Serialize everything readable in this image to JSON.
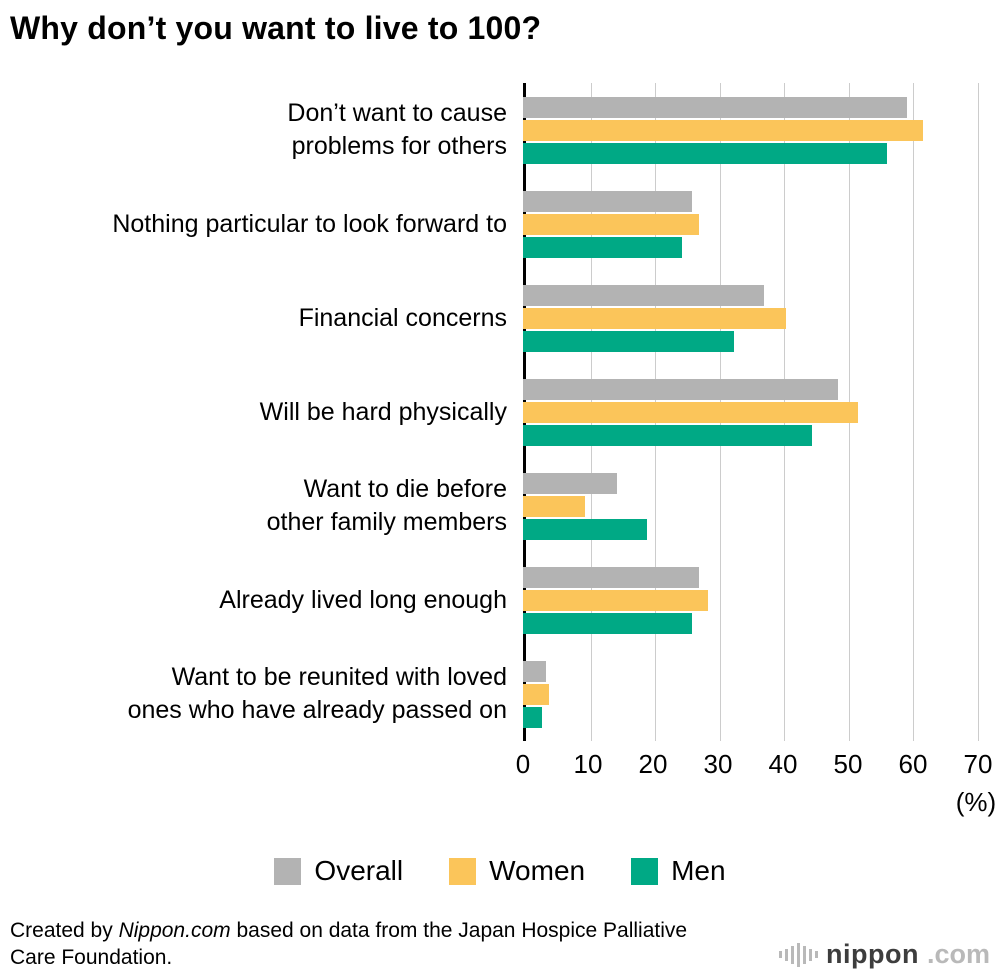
{
  "title": "Why don’t you want to live to 100?",
  "chart_data": {
    "type": "bar",
    "orientation": "horizontal",
    "title": "Why don’t you want to live to 100?",
    "categories": [
      "Don’t want to cause\nproblems for others",
      "Nothing particular to look forward to",
      "Financial concerns",
      "Will be hard physically",
      "Want to die before\nother family members",
      "Already lived long enough",
      "Want to be reunited with loved\nones who have already passed on"
    ],
    "series": [
      {
        "name": "Overall",
        "color": "#b3b3b3",
        "values": [
          59,
          26,
          37,
          48.5,
          14.5,
          27,
          3.5
        ]
      },
      {
        "name": "Women",
        "color": "#fbc55a",
        "values": [
          61.5,
          27,
          40.5,
          51.5,
          9.5,
          28.5,
          4
        ]
      },
      {
        "name": "Men",
        "color": "#00a985",
        "values": [
          56,
          24.5,
          32.5,
          44.5,
          19,
          26,
          3
        ]
      }
    ],
    "xlim": [
      0,
      70
    ],
    "xmax": 70,
    "ticks": [
      0,
      10,
      20,
      30,
      40,
      50,
      60,
      70
    ],
    "xlabel": "(%)",
    "grid": true,
    "legend_position": "bottom"
  },
  "footer": {
    "credit_prefix": "Created by ",
    "credit_source": "Nippon.com",
    "credit_suffix": " based on data from the Japan Hospice Palliative Care Foundation.",
    "logo_name": "nippon",
    "logo_tld": ".com"
  }
}
